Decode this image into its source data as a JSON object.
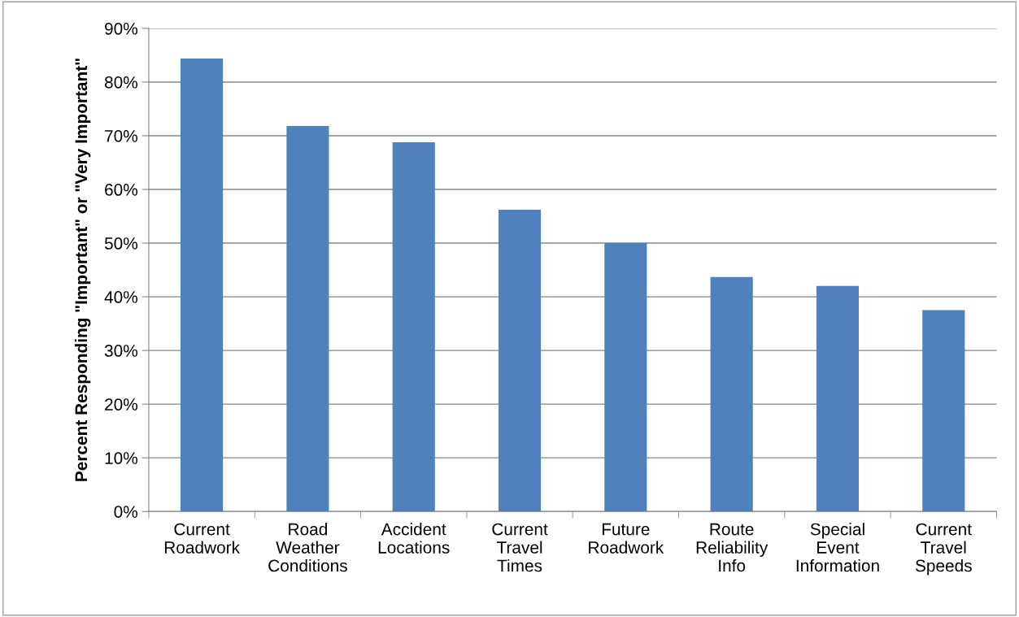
{
  "chart_data": {
    "type": "bar",
    "ylabel": "Percent Responding \"Important\" or \"Very Important\"",
    "categories": [
      "Current\nRoadwork",
      "Road\nWeather\nConditions",
      "Accident\nLocations",
      "Current\nTravel\nTimes",
      "Future\nRoadwork",
      "Route\nReliability\nInfo",
      "Special\nEvent\nInformation",
      "Current\nTravel\nSpeeds"
    ],
    "values": [
      84.4,
      71.8,
      68.8,
      56.2,
      50.0,
      43.7,
      42.0,
      37.5
    ],
    "color": "#4f81bd",
    "ylim": [
      0,
      90
    ],
    "yticks": [
      {
        "value": 0,
        "label": "0%"
      },
      {
        "value": 10,
        "label": "10%"
      },
      {
        "value": 20,
        "label": "20%"
      },
      {
        "value": 30,
        "label": "30%"
      },
      {
        "value": 40,
        "label": "40%"
      },
      {
        "value": 50,
        "label": "50%"
      },
      {
        "value": 60,
        "label": "60%"
      },
      {
        "value": 70,
        "label": "70%"
      },
      {
        "value": 80,
        "label": "80%"
      },
      {
        "value": 90,
        "label": "90%"
      }
    ],
    "grid": "y"
  }
}
